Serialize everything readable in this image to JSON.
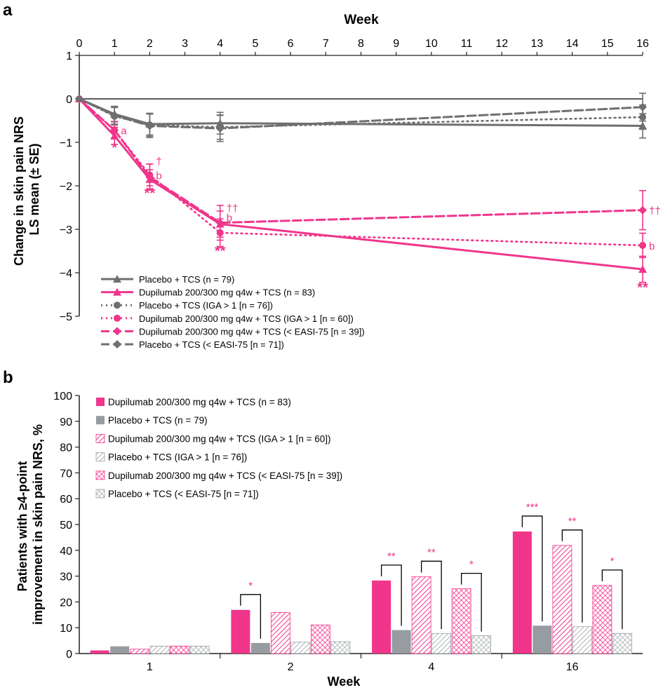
{
  "colors": {
    "pink": "#f0358b",
    "gray": "#6f6f6f",
    "bar_gray": "#979ca0",
    "light_gray": "#9aa0a4",
    "axis": "#222222"
  },
  "panel_a": {
    "label": "a",
    "xtitle": "Week",
    "ytitle_line1": "Change in skin pain NRS",
    "ytitle_line2": "LS mean (± SE)",
    "legend": [
      "Placebo + TCS (n = 79)",
      "Dupilumab 200/300 mg q4w + TCS (n = 83)",
      "Placebo + TCS (IGA > 1 [n = 76])",
      "Dupilumab 200/300 mg q4w + TCS (IGA > 1 [n = 60])",
      "Dupilumab 200/300 mg q4w + TCS (< EASI-75 [n = 39])",
      "Placebo + TCS (< EASI-75 [n = 71])"
    ]
  },
  "panel_b": {
    "label": "b",
    "xtitle": "Week",
    "ytitle_line1": "Patients with ≥4-point",
    "ytitle_line2": "improvement in skin pain NRS, %",
    "legend": [
      "Dupilumab 200/300 mg q4w + TCS (n = 83)",
      "Placebo + TCS (n = 79)",
      "Dupilumab 200/300 mg q4w + TCS (IGA > 1 [n = 60])",
      "Placebo + TCS (IGA > 1 [n = 76])",
      "Dupilumab 200/300 mg q4w + TCS (< EASI-75 [n = 39])",
      "Placebo + TCS (< EASI-75 [n = 71])"
    ]
  },
  "chart_data": [
    {
      "type": "line",
      "title": "",
      "xlabel": "Week",
      "ylabel": "Change in skin pain NRS LS mean (± SE)",
      "xlim": [
        0,
        16
      ],
      "ylim": [
        -5,
        1
      ],
      "x_ticks": [
        0,
        1,
        2,
        3,
        4,
        5,
        6,
        7,
        8,
        9,
        10,
        11,
        12,
        13,
        14,
        15,
        16
      ],
      "y_ticks": [
        1,
        0,
        -1,
        -2,
        -3,
        -4,
        -5
      ],
      "series": [
        {
          "name": "Placebo + TCS (n = 79)",
          "x": [
            0,
            1,
            2,
            4,
            16
          ],
          "values": [
            0,
            -0.35,
            -0.58,
            -0.56,
            -0.62
          ],
          "se": [
            0,
            0.18,
            0.25,
            0.25,
            0.28
          ],
          "color": "gray",
          "dash": "solid",
          "marker": "triangle"
        },
        {
          "name": "Dupilumab 200/300 mg q4w + TCS (n = 83)",
          "x": [
            0,
            1,
            2,
            4,
            16
          ],
          "values": [
            0,
            -0.85,
            -1.85,
            -2.88,
            -3.92
          ],
          "se": [
            0,
            0.2,
            0.22,
            0.3,
            0.3
          ],
          "color": "pink",
          "dash": "solid",
          "marker": "triangle"
        },
        {
          "name": "Placebo + TCS (IGA > 1 [n = 76])",
          "x": [
            0,
            1,
            2,
            4,
            16
          ],
          "values": [
            0,
            -0.4,
            -0.6,
            -0.65,
            -0.42
          ],
          "se": [
            0,
            0.2,
            0.26,
            0.28,
            0.28
          ],
          "color": "gray",
          "dash": "dotted",
          "marker": "circle"
        },
        {
          "name": "Dupilumab 200/300 mg q4w + TCS (IGA > 1 [n = 60])",
          "x": [
            0,
            1,
            2,
            4,
            16
          ],
          "values": [
            0,
            -0.72,
            -1.75,
            -3.08,
            -3.37
          ],
          "se": [
            0,
            0.2,
            0.25,
            0.32,
            0.28
          ],
          "color": "pink",
          "dash": "dotted",
          "marker": "circle"
        },
        {
          "name": "Dupilumab 200/300 mg q4w + TCS (< EASI-75 [n = 39])",
          "x": [
            0,
            1,
            2,
            4,
            16
          ],
          "values": [
            0,
            -0.72,
            -1.8,
            -2.85,
            -2.56
          ],
          "se": [
            0,
            0.2,
            0.3,
            0.4,
            0.45
          ],
          "color": "pink",
          "dash": "dashed",
          "marker": "diamond"
        },
        {
          "name": "Placebo + TCS (< EASI-75 [n = 71])",
          "x": [
            0,
            1,
            2,
            4,
            16
          ],
          "values": [
            0,
            -0.38,
            -0.62,
            -0.68,
            -0.19
          ],
          "se": [
            0,
            0.2,
            0.27,
            0.3,
            0.32
          ],
          "color": "gray",
          "dash": "dashed",
          "marker": "diamond"
        }
      ],
      "annotations": [
        {
          "text": "a",
          "x": 1,
          "y": -0.72,
          "color": "pink",
          "place": "right"
        },
        {
          "text": "*",
          "x": 1,
          "y": -1.0,
          "color": "pink",
          "place": "below"
        },
        {
          "text": "†",
          "x": 2,
          "y": -1.42,
          "color": "pink",
          "place": "right"
        },
        {
          "text": "b",
          "x": 2,
          "y": -1.75,
          "color": "pink",
          "place": "right"
        },
        {
          "text": "**",
          "x": 2,
          "y": -2.05,
          "color": "pink",
          "place": "below"
        },
        {
          "text": "††",
          "x": 4,
          "y": -2.5,
          "color": "pink",
          "place": "right"
        },
        {
          "text": "b",
          "x": 4,
          "y": -2.72,
          "color": "pink",
          "place": "right"
        },
        {
          "text": "**",
          "x": 4,
          "y": -3.38,
          "color": "pink",
          "place": "below"
        },
        {
          "text": "††",
          "x": 16,
          "y": -2.56,
          "color": "pink",
          "place": "right"
        },
        {
          "text": "b",
          "x": 16,
          "y": -3.37,
          "color": "pink",
          "place": "right"
        },
        {
          "text": "**",
          "x": 16,
          "y": -4.22,
          "color": "pink",
          "place": "below"
        }
      ]
    },
    {
      "type": "bar",
      "title": "",
      "xlabel": "Week",
      "ylabel": "Patients with ≥4-point improvement in skin pain NRS, %",
      "ylim": [
        0,
        100
      ],
      "y_ticks": [
        0,
        10,
        20,
        30,
        40,
        50,
        60,
        70,
        80,
        90,
        100
      ],
      "categories": [
        "1",
        "2",
        "4",
        "16"
      ],
      "series": [
        {
          "name": "Dupilumab 200/300 mg q4w + TCS (n = 83)",
          "values": [
            1.2,
            16.9,
            28.3,
            47.3
          ],
          "color": "pink",
          "pattern": "solid"
        },
        {
          "name": "Placebo + TCS (n = 79)",
          "values": [
            2.8,
            4.1,
            9.1,
            10.8
          ],
          "color": "bar_gray",
          "pattern": "solid"
        },
        {
          "name": "Dupilumab 200/300 mg q4w + TCS (IGA > 1 [n = 60])",
          "values": [
            1.7,
            15.9,
            29.8,
            41.9
          ],
          "color": "pink",
          "pattern": "diagonal"
        },
        {
          "name": "Placebo + TCS (IGA > 1 [n = 76])",
          "values": [
            2.9,
            4.4,
            7.8,
            10.4
          ],
          "color": "light_gray",
          "pattern": "diagonal"
        },
        {
          "name": "Dupilumab 200/300 mg q4w + TCS (< EASI-75 [n = 39])",
          "values": [
            2.9,
            11.1,
            25.1,
            26.4
          ],
          "color": "pink",
          "pattern": "cross"
        },
        {
          "name": "Placebo + TCS (< EASI-75 [n = 71])",
          "values": [
            2.9,
            4.6,
            6.9,
            7.8
          ],
          "color": "light_gray",
          "pattern": "cross"
        }
      ],
      "significance": [
        {
          "category": "2",
          "pair": [
            0,
            1
          ],
          "label": "*"
        },
        {
          "category": "4",
          "pair": [
            0,
            1
          ],
          "label": "**"
        },
        {
          "category": "4",
          "pair": [
            2,
            3
          ],
          "label": "**"
        },
        {
          "category": "4",
          "pair": [
            4,
            5
          ],
          "label": "*"
        },
        {
          "category": "16",
          "pair": [
            0,
            1
          ],
          "label": "***"
        },
        {
          "category": "16",
          "pair": [
            2,
            3
          ],
          "label": "**"
        },
        {
          "category": "16",
          "pair": [
            4,
            5
          ],
          "label": "*"
        }
      ]
    }
  ]
}
